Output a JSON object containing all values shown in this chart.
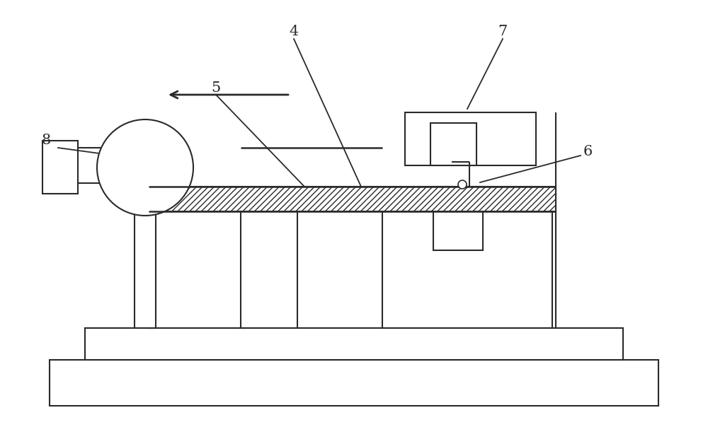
{
  "bg_color": "#ffffff",
  "line_color": "#2a2a2a",
  "lw": 1.5,
  "fig_width": 10.0,
  "fig_height": 6.04,
  "label_fontsize": 15
}
